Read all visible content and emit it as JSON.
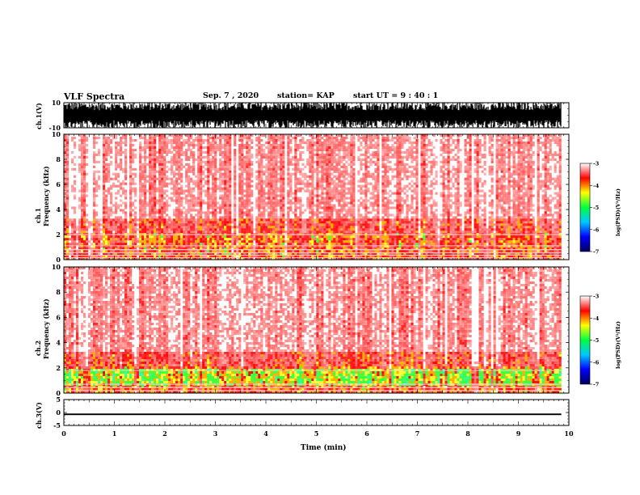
{
  "header": {
    "title": "VLF Spectra",
    "date": "Sep. 7 , 2020",
    "station": "station= KAP",
    "start": "start  UT =   9 : 40 : 1"
  },
  "chart_data": [
    {
      "type": "line",
      "panel": "ch.1 waveform",
      "ylabel": "ch.1(V)",
      "ylim": [
        -10,
        10
      ],
      "yticks": [
        "10",
        "-10"
      ],
      "xlim": [
        0,
        10
      ],
      "color": "#000000"
    },
    {
      "type": "heatmap",
      "panel": "ch.1 spectrogram",
      "ylabel": "ch.1\nFrequency (kHz)",
      "ylabel_lines": [
        "ch.1",
        "Frequency (kHz)"
      ],
      "ylim": [
        0,
        10
      ],
      "yticks": [
        "0",
        "2",
        "4",
        "6",
        "8",
        "10"
      ],
      "xlim": [
        0,
        10
      ],
      "data_end_min": 9.85,
      "colorbar": {
        "label": "log(PSD)(V²/Hz)",
        "range": [
          -7,
          -3
        ],
        "ticks": [
          "-3",
          "-4",
          "-5",
          "-6",
          "-7"
        ],
        "colors": [
          "#000060",
          "#0000ff",
          "#00c8ff",
          "#00ff40",
          "#ffff00",
          "#ff0000",
          "#ffffff"
        ]
      }
    },
    {
      "type": "heatmap",
      "panel": "ch.2 spectrogram",
      "ylabel": "ch.2\nFrequency (kHz)",
      "ylabel_lines": [
        "ch.2",
        "Frequency (kHz)"
      ],
      "ylim": [
        0,
        10
      ],
      "yticks": [
        "0",
        "2",
        "4",
        "6",
        "8",
        "10"
      ],
      "xlim": [
        0,
        10
      ],
      "data_end_min": 9.85,
      "colorbar": {
        "label": "log(PSD)(V²/Hz)",
        "range": [
          -7,
          -3
        ],
        "ticks": [
          "-3",
          "-4",
          "-5",
          "-6",
          "-7"
        ],
        "colors": [
          "#000060",
          "#0000ff",
          "#00c8ff",
          "#00ff40",
          "#ffff00",
          "#ff0000",
          "#ffffff"
        ]
      }
    },
    {
      "type": "line",
      "panel": "ch.3 waveform",
      "ylabel": "ch.3(V)",
      "ylim": [
        -5,
        5
      ],
      "yticks": [
        "5",
        "0",
        "-5"
      ],
      "xlim": [
        0,
        10
      ],
      "xlabel": "Time  (min)",
      "xticks": [
        "0",
        "1",
        "2",
        "3",
        "4",
        "5",
        "6",
        "7",
        "8",
        "9",
        "10"
      ],
      "band": [
        -1.0,
        -0.4
      ],
      "color": "#000000"
    }
  ]
}
